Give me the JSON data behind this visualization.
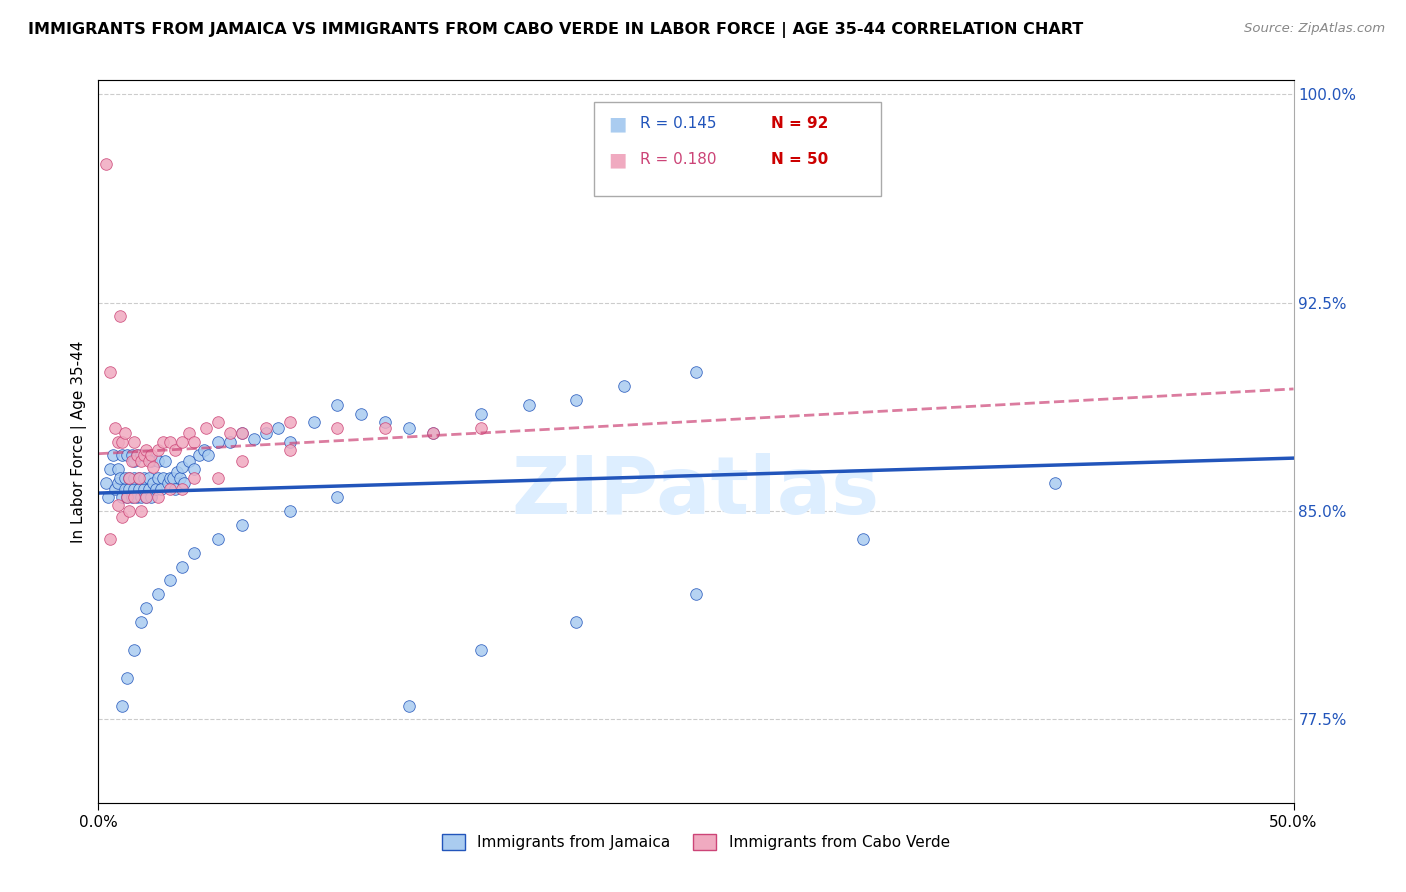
{
  "title": "IMMIGRANTS FROM JAMAICA VS IMMIGRANTS FROM CABO VERDE IN LABOR FORCE | AGE 35-44 CORRELATION CHART",
  "source": "Source: ZipAtlas.com",
  "ylabel": "In Labor Force | Age 35-44",
  "xlim": [
    0.0,
    0.5
  ],
  "ylim": [
    0.745,
    1.005
  ],
  "yticks": [
    0.775,
    0.85,
    0.925,
    1.0
  ],
  "ytick_labels": [
    "77.5%",
    "85.0%",
    "92.5%",
    "100.0%"
  ],
  "xticks": [
    0.0,
    0.5
  ],
  "xtick_labels": [
    "0.0%",
    "50.0%"
  ],
  "r_jamaica": 0.145,
  "n_jamaica": 92,
  "r_caboverde": 0.18,
  "n_caboverde": 50,
  "color_jamaica": "#aaccf0",
  "color_caboverde": "#f0aac0",
  "line_jamaica_color": "#2255bb",
  "line_caboverde_color": "#cc4477",
  "watermark_color": "#ddeeff",
  "background_color": "#ffffff",
  "jamaica_x": [
    0.003,
    0.004,
    0.005,
    0.006,
    0.007,
    0.008,
    0.008,
    0.009,
    0.01,
    0.01,
    0.011,
    0.011,
    0.012,
    0.012,
    0.013,
    0.013,
    0.014,
    0.014,
    0.015,
    0.015,
    0.015,
    0.016,
    0.016,
    0.017,
    0.017,
    0.018,
    0.018,
    0.019,
    0.019,
    0.02,
    0.02,
    0.021,
    0.021,
    0.022,
    0.022,
    0.023,
    0.024,
    0.025,
    0.025,
    0.026,
    0.027,
    0.028,
    0.029,
    0.03,
    0.031,
    0.032,
    0.033,
    0.034,
    0.035,
    0.036,
    0.038,
    0.04,
    0.042,
    0.044,
    0.046,
    0.05,
    0.055,
    0.06,
    0.065,
    0.07,
    0.075,
    0.08,
    0.09,
    0.1,
    0.11,
    0.12,
    0.13,
    0.14,
    0.16,
    0.18,
    0.2,
    0.22,
    0.25,
    0.01,
    0.012,
    0.015,
    0.018,
    0.02,
    0.025,
    0.03,
    0.035,
    0.04,
    0.05,
    0.06,
    0.08,
    0.1,
    0.13,
    0.16,
    0.2,
    0.25,
    0.32,
    0.4
  ],
  "jamaica_y": [
    0.86,
    0.855,
    0.865,
    0.87,
    0.858,
    0.86,
    0.865,
    0.862,
    0.855,
    0.87,
    0.858,
    0.862,
    0.855,
    0.87,
    0.858,
    0.862,
    0.855,
    0.87,
    0.858,
    0.862,
    0.868,
    0.855,
    0.87,
    0.858,
    0.862,
    0.855,
    0.87,
    0.858,
    0.862,
    0.855,
    0.87,
    0.858,
    0.862,
    0.855,
    0.868,
    0.86,
    0.858,
    0.862,
    0.868,
    0.858,
    0.862,
    0.868,
    0.86,
    0.862,
    0.862,
    0.858,
    0.864,
    0.862,
    0.866,
    0.86,
    0.868,
    0.865,
    0.87,
    0.872,
    0.87,
    0.875,
    0.875,
    0.878,
    0.876,
    0.878,
    0.88,
    0.875,
    0.882,
    0.888,
    0.885,
    0.882,
    0.88,
    0.878,
    0.885,
    0.888,
    0.89,
    0.895,
    0.9,
    0.78,
    0.79,
    0.8,
    0.81,
    0.815,
    0.82,
    0.825,
    0.83,
    0.835,
    0.84,
    0.845,
    0.85,
    0.855,
    0.78,
    0.8,
    0.81,
    0.82,
    0.84,
    0.86
  ],
  "caboverde_x": [
    0.003,
    0.005,
    0.007,
    0.008,
    0.009,
    0.01,
    0.011,
    0.012,
    0.013,
    0.014,
    0.015,
    0.016,
    0.017,
    0.018,
    0.019,
    0.02,
    0.021,
    0.022,
    0.023,
    0.025,
    0.027,
    0.03,
    0.032,
    0.035,
    0.038,
    0.04,
    0.045,
    0.05,
    0.055,
    0.06,
    0.07,
    0.08,
    0.1,
    0.12,
    0.14,
    0.16,
    0.005,
    0.008,
    0.01,
    0.013,
    0.015,
    0.018,
    0.02,
    0.025,
    0.03,
    0.035,
    0.04,
    0.05,
    0.06,
    0.08
  ],
  "caboverde_y": [
    0.975,
    0.9,
    0.88,
    0.875,
    0.92,
    0.875,
    0.878,
    0.855,
    0.862,
    0.868,
    0.875,
    0.87,
    0.862,
    0.868,
    0.87,
    0.872,
    0.868,
    0.87,
    0.866,
    0.872,
    0.875,
    0.875,
    0.872,
    0.875,
    0.878,
    0.875,
    0.88,
    0.882,
    0.878,
    0.878,
    0.88,
    0.882,
    0.88,
    0.88,
    0.878,
    0.88,
    0.84,
    0.852,
    0.848,
    0.85,
    0.855,
    0.85,
    0.855,
    0.855,
    0.858,
    0.858,
    0.862,
    0.862,
    0.868,
    0.872
  ],
  "legend_r_jamaica_color": "#2255bb",
  "legend_n_color": "#cc0000",
  "legend_r_caboverde_color": "#cc4477",
  "bottom_legend_labels": [
    "Immigrants from Jamaica",
    "Immigrants from Cabo Verde"
  ]
}
